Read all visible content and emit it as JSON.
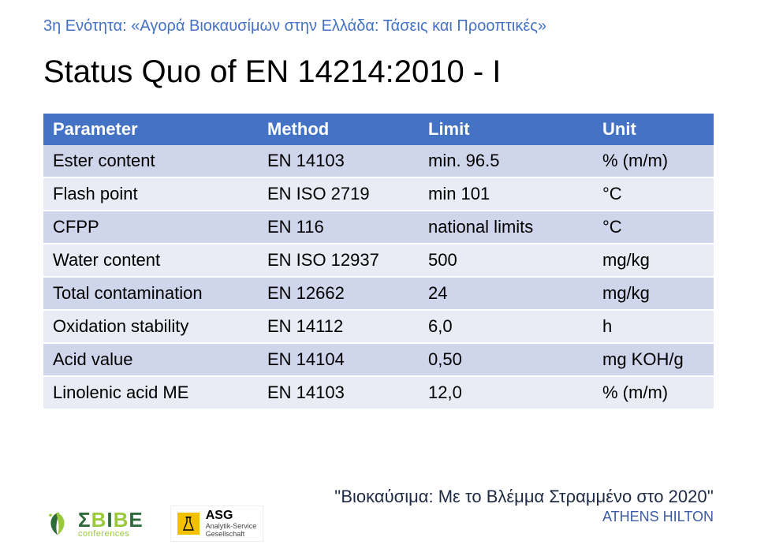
{
  "header": {
    "text": "3η Ενότητα: «Αγορά Βιοκαυσίμων στην Ελλάδα: Τάσεις και Προοπτικές»",
    "color": "#4472c4",
    "fontsize": 20
  },
  "title": {
    "text": "Status Quo of EN 14214:2010 - I",
    "fontsize": 40,
    "color": "#000000"
  },
  "table": {
    "header_bg": "#4472c4",
    "header_fg": "#ffffff",
    "row_bg_odd": "#cfd5ea",
    "row_bg_even": "#e9ebf5",
    "cell_fg": "#000000",
    "fontsize": 22,
    "columns": [
      {
        "label": "Parameter",
        "class": "col-param"
      },
      {
        "label": "Method",
        "class": "col-method"
      },
      {
        "label": "Limit",
        "class": "col-limit"
      },
      {
        "label": "Unit",
        "class": "col-unit"
      }
    ],
    "rows": [
      {
        "param": "Ester content",
        "method": "EN 14103",
        "limit": "min. 96.5",
        "unit": "% (m/m)"
      },
      {
        "param": "Flash point",
        "method": "EN ISO 2719",
        "limit": "min 101",
        "unit": "°C"
      },
      {
        "param": "CFPP",
        "method": "EN 116",
        "limit": "national limits",
        "unit": "°C"
      },
      {
        "param": "Water content",
        "method": "EN ISO 12937",
        "limit": "500",
        "unit": "mg/kg"
      },
      {
        "param": "Total contamination",
        "method": "EN 12662",
        "limit": "24",
        "unit": "mg/kg"
      },
      {
        "param": "Oxidation stability",
        "method": "EN 14112",
        "limit": "6,0",
        "unit": "h"
      },
      {
        "param": "Acid value",
        "method": "EN 14104",
        "limit": "0,50",
        "unit": "mg KOH/g"
      },
      {
        "param": "Linolenic acid ME",
        "method": "EN 14103",
        "limit": "12,0",
        "unit": "% (m/m)"
      }
    ]
  },
  "footer": {
    "text": "''Βιοκαύσιμα: Με το Βλέμμα Στραμμένο στο 2020''",
    "text_color": "#1f2a44",
    "sub": "ATHENS HILTON",
    "sub_color": "#3d5ca6"
  },
  "logos": {
    "sbibe": {
      "main": "ΣΒΙΒΕ",
      "sub": "conferences",
      "leaf_dark": "#2e6b3a",
      "leaf_light": "#9ac93c",
      "conf_color": "#9ac93c"
    },
    "asg": {
      "main": "ASG",
      "sub1": "Analytik-Service",
      "sub2": "Gesellschaft",
      "square_color": "#f2c200"
    }
  }
}
